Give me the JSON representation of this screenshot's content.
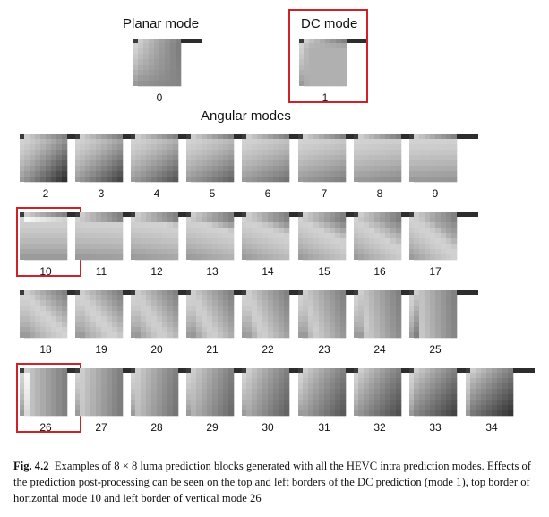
{
  "headings": {
    "planar": "Planar mode",
    "dc": "DC mode",
    "angular": "Angular modes"
  },
  "modes": [
    {
      "label": "0",
      "mode": 0
    },
    {
      "label": "1",
      "mode": 1
    },
    {
      "label": "2",
      "mode": 2
    },
    {
      "label": "3",
      "mode": 3
    },
    {
      "label": "4",
      "mode": 4
    },
    {
      "label": "5",
      "mode": 5
    },
    {
      "label": "6",
      "mode": 6
    },
    {
      "label": "7",
      "mode": 7
    },
    {
      "label": "8",
      "mode": 8
    },
    {
      "label": "9",
      "mode": 9
    },
    {
      "label": "10",
      "mode": 10
    },
    {
      "label": "11",
      "mode": 11
    },
    {
      "label": "12",
      "mode": 12
    },
    {
      "label": "13",
      "mode": 13
    },
    {
      "label": "14",
      "mode": 14
    },
    {
      "label": "15",
      "mode": 15
    },
    {
      "label": "16",
      "mode": 16
    },
    {
      "label": "17",
      "mode": 17
    },
    {
      "label": "18",
      "mode": 18
    },
    {
      "label": "19",
      "mode": 19
    },
    {
      "label": "20",
      "mode": 20
    },
    {
      "label": "21",
      "mode": 21
    },
    {
      "label": "22",
      "mode": 22
    },
    {
      "label": "23",
      "mode": 23
    },
    {
      "label": "24",
      "mode": 24
    },
    {
      "label": "25",
      "mode": 25
    },
    {
      "label": "26",
      "mode": 26
    },
    {
      "label": "27",
      "mode": 27
    },
    {
      "label": "28",
      "mode": 28
    },
    {
      "label": "29",
      "mode": 29
    },
    {
      "label": "30",
      "mode": 30
    },
    {
      "label": "31",
      "mode": 31
    },
    {
      "label": "32",
      "mode": 32
    },
    {
      "label": "33",
      "mode": 33
    },
    {
      "label": "34",
      "mode": 34
    }
  ],
  "highlighted_modes": [
    1,
    10,
    26
  ],
  "highlight_color": "#d0202a",
  "caption": {
    "label": "Fig. 4.2",
    "text": "Examples of 8 × 8 luma prediction blocks generated with all the HEVC intra prediction modes. Effects of the prediction post-processing can be seen on the top and left borders of the DC prediction (mode 1), top border of horizontal mode 10 and left border of vertical mode 26"
  }
}
